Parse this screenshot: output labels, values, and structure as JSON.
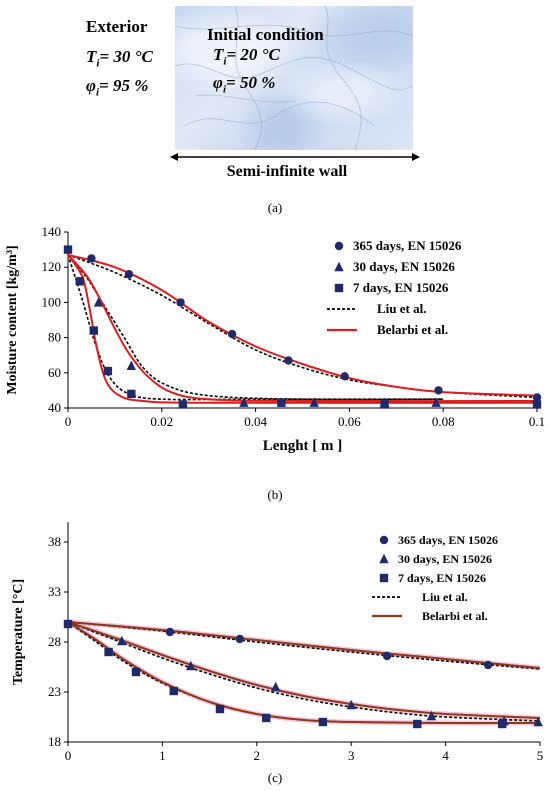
{
  "panel_a": {
    "exterior_title": "Exterior",
    "exterior_temp": "T",
    "exterior_temp_sub": "i",
    "exterior_temp_val": "= 30 °C",
    "exterior_hum": "φ",
    "exterior_hum_sub": "i",
    "exterior_hum_val": "= 95 %",
    "initial_title": "Initial condition",
    "initial_temp": "T",
    "initial_temp_sub": "i",
    "initial_temp_val": "= 20 °C",
    "initial_hum": "φ",
    "initial_hum_sub": "i",
    "initial_hum_val": "= 50 %",
    "wall_label": "Semi-infinite wall",
    "caption": "(a)"
  },
  "chart_data": [
    {
      "type": "line",
      "caption": "(b)",
      "xlabel": "Lenght [ m ]",
      "ylabel": "Moisture content [kg/m³]",
      "xlim": [
        0,
        0.1
      ],
      "ylim": [
        40,
        140
      ],
      "xticks": [
        "0",
        "0.02",
        "0.04",
        "0.06",
        "0.08",
        "0.1"
      ],
      "xtick_values": [
        0,
        0.02,
        0.04,
        0.06,
        0.08,
        0.1
      ],
      "yticks": [
        "40",
        "60",
        "80",
        "100",
        "120",
        "140"
      ],
      "ytick_values": [
        40,
        60,
        80,
        100,
        120,
        140
      ],
      "legend": {
        "placement": "top-right",
        "entries": [
          "365 days, EN 15026",
          "30 days, EN 15026",
          "7 days, EN 15026",
          "Liu et al.",
          "Belarbi et al."
        ]
      },
      "colors": {
        "marker": "#1f2a6b",
        "liu": "#000000",
        "belarbi": "#dd1c1c"
      },
      "series": [
        {
          "name": "365 days, EN 15026",
          "marker": "circle",
          "x": [
            0.005,
            0.013,
            0.024,
            0.035,
            0.047,
            0.059,
            0.079,
            0.1
          ],
          "y": [
            125,
            116,
            100,
            82,
            67,
            58,
            50,
            46
          ]
        },
        {
          "name": "30 days, EN 15026",
          "marker": "triangle",
          "x": [
            0.0065,
            0.0135,
            0.0375,
            0.0525,
            0.0675,
            0.0785
          ],
          "y": [
            100,
            64,
            43,
            43,
            43,
            43
          ]
        },
        {
          "name": "7 days, EN 15026",
          "marker": "square",
          "x": [
            0,
            0.0025,
            0.0055,
            0.0085,
            0.0135,
            0.0245,
            0.0455,
            0.0675,
            0.1
          ],
          "y": [
            130,
            112,
            84,
            61,
            48,
            42,
            43,
            42,
            42
          ]
        },
        {
          "name": "Liu et al.",
          "style": "dotted",
          "curves": [
            {
              "x": [
                0,
                0.01,
                0.02,
                0.03,
                0.04,
                0.05,
                0.06,
                0.07,
                0.08,
                0.1
              ],
              "y": [
                127,
                117,
                104,
                88,
                73,
                63,
                56,
                52,
                49,
                46
              ]
            },
            {
              "x": [
                0,
                0.004,
                0.008,
                0.012,
                0.016,
                0.021,
                0.03,
                0.05,
                0.08
              ],
              "y": [
                127,
                114,
                97,
                80,
                63,
                53,
                47,
                45,
                45
              ]
            },
            {
              "x": [
                0,
                0.003,
                0.006,
                0.009,
                0.013,
                0.02,
                0.04,
                0.08
              ],
              "y": [
                127,
                102,
                75,
                57,
                48,
                45,
                45,
                45
              ]
            }
          ]
        },
        {
          "name": "Belarbi et al.",
          "style": "solid",
          "curves": [
            {
              "x": [
                0,
                0.01,
                0.02,
                0.03,
                0.04,
                0.05,
                0.06,
                0.07,
                0.08,
                0.1
              ],
              "y": [
                127,
                120,
                107,
                89,
                75,
                65,
                57,
                52,
                49,
                47
              ]
            },
            {
              "x": [
                0,
                0.004,
                0.007,
                0.01,
                0.013,
                0.017,
                0.022,
                0.03,
                0.05,
                0.1
              ],
              "y": [
                127,
                115,
                101,
                85,
                71,
                58,
                49,
                45,
                44,
                44
              ]
            },
            {
              "x": [
                0,
                0.003,
                0.0045,
                0.006,
                0.008,
                0.011,
                0.016,
                0.03,
                0.1
              ],
              "y": [
                127,
                115,
                98,
                76,
                56,
                47,
                44,
                43,
                43
              ]
            }
          ]
        }
      ]
    },
    {
      "type": "line",
      "caption": "(c)",
      "xlabel": "Lenght [ m ]",
      "ylabel": "Temperature [°C]",
      "xlim": [
        0,
        5
      ],
      "ylim": [
        18,
        40
      ],
      "xticks": [
        "0",
        "1",
        "2",
        "3",
        "4",
        "5"
      ],
      "xtick_values": [
        0,
        1,
        2,
        3,
        4,
        5
      ],
      "yticks": [
        "18",
        "23",
        "28",
        "33",
        "38"
      ],
      "ytick_values": [
        18,
        23,
        28,
        33,
        38
      ],
      "legend": {
        "placement": "top-right",
        "entries": [
          "365 days, EN 15026",
          "30 days, EN 15026",
          "7 days, EN 15026",
          "Liu et al.",
          "Belarbi et al."
        ]
      },
      "colors": {
        "marker": "#1f2a6b",
        "liu": "#000000",
        "belarbi": "#8b3a1a",
        "halo": "#f2b8d6"
      },
      "series": [
        {
          "name": "365 days, EN 15026",
          "marker": "circle",
          "x": [
            0,
            1.08,
            1.82,
            3.38,
            4.45
          ],
          "y": [
            29.8,
            29.0,
            28.3,
            26.6,
            25.7
          ]
        },
        {
          "name": "30 days, EN 15026",
          "marker": "triangle",
          "x": [
            0.57,
            1.3,
            2.2,
            3.0,
            3.85,
            4.62,
            4.98
          ],
          "y": [
            28.1,
            25.6,
            23.5,
            21.7,
            20.6,
            20.1,
            20.0
          ]
        },
        {
          "name": "7 days, EN 15026",
          "marker": "square",
          "x": [
            0,
            0.43,
            0.72,
            1.12,
            1.61,
            2.1,
            2.7,
            3.7,
            4.6
          ],
          "y": [
            29.8,
            27.0,
            25.0,
            23.1,
            21.3,
            20.4,
            20.0,
            19.8,
            19.8
          ]
        },
        {
          "name": "Liu et al.",
          "style": "dotted",
          "curves": [
            {
              "x": [
                0,
                1,
                2,
                3,
                4,
                5
              ],
              "y": [
                30,
                29.1,
                28.0,
                27.0,
                26.1,
                25.3
              ]
            },
            {
              "x": [
                0,
                0.5,
                1,
                1.5,
                2,
                2.5,
                3,
                3.5,
                4,
                5
              ],
              "y": [
                30,
                28.2,
                26.4,
                24.8,
                23.4,
                22.3,
                21.5,
                20.9,
                20.5,
                20.1
              ]
            },
            {
              "x": [
                0,
                0.3,
                0.6,
                1,
                1.5,
                2,
                2.5,
                3,
                4,
                5
              ],
              "y": [
                30,
                28.0,
                26.0,
                23.9,
                22.0,
                20.8,
                20.2,
                20.0,
                19.9,
                19.9
              ]
            }
          ]
        },
        {
          "name": "Belarbi et al.",
          "style": "solid",
          "curves": [
            {
              "x": [
                0,
                1,
                2,
                3,
                4,
                5
              ],
              "y": [
                30,
                29.2,
                28.2,
                27.2,
                26.3,
                25.4
              ]
            },
            {
              "x": [
                0,
                0.5,
                1,
                1.5,
                2,
                2.5,
                3,
                3.5,
                4,
                5
              ],
              "y": [
                30,
                28.4,
                26.7,
                25.1,
                23.7,
                22.6,
                21.8,
                21.2,
                20.8,
                20.4
              ]
            },
            {
              "x": [
                0,
                0.3,
                0.6,
                1,
                1.5,
                2,
                2.5,
                3,
                4,
                5
              ],
              "y": [
                30,
                28.2,
                26.2,
                24.0,
                22.0,
                20.8,
                20.2,
                20.0,
                19.9,
                19.9
              ]
            }
          ]
        }
      ]
    }
  ]
}
